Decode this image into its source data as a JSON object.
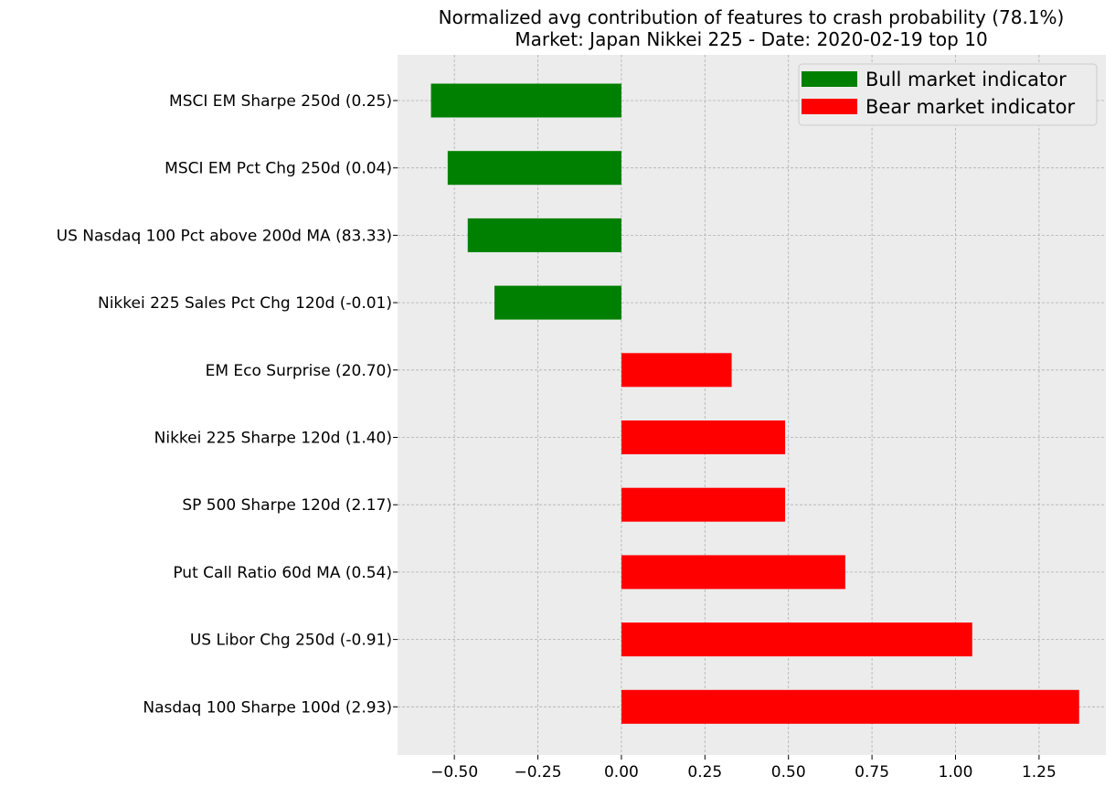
{
  "chart_data": {
    "type": "bar",
    "orientation": "horizontal",
    "title": "Normalized avg contribution of features to crash probability (78.1%)",
    "subtitle": "Market: Japan Nikkei 225 - Date: 2020-02-19  top 10",
    "xlabel": "",
    "ylabel": "",
    "xlim": [
      -0.67,
      1.45
    ],
    "xticks": [
      -0.5,
      -0.25,
      0.0,
      0.25,
      0.5,
      0.75,
      1.0,
      1.25
    ],
    "xtick_labels": [
      "−0.50",
      "−0.25",
      "0.00",
      "0.25",
      "0.50",
      "0.75",
      "1.00",
      "1.25"
    ],
    "grid": true,
    "legend_position": "top-right",
    "categories": [
      "MSCI EM Sharpe 250d (0.25)",
      "MSCI EM Pct Chg 250d (0.04)",
      "US Nasdaq 100 Pct above 200d MA (83.33)",
      "Nikkei 225 Sales Pct Chg 120d (-0.01)",
      "EM Eco Surprise (20.70)",
      "Nikkei 225 Sharpe 120d (1.40)",
      "SP 500 Sharpe 120d (2.17)",
      "Put Call Ratio 60d MA (0.54)",
      "US Libor Chg 250d (-0.91)",
      "Nasdaq 100 Sharpe 100d (2.93)"
    ],
    "values": [
      -0.57,
      -0.52,
      -0.46,
      -0.38,
      0.33,
      0.49,
      0.49,
      0.67,
      1.05,
      1.37
    ],
    "series": [
      {
        "name": "Bull market indicator",
        "color": "#008000"
      },
      {
        "name": "Bear market indicator",
        "color": "#ff0000"
      }
    ]
  },
  "colors": {
    "plot_background": "#ececec",
    "grid": "#b0b0b0",
    "bull": "#008000",
    "bear": "#ff0000"
  }
}
